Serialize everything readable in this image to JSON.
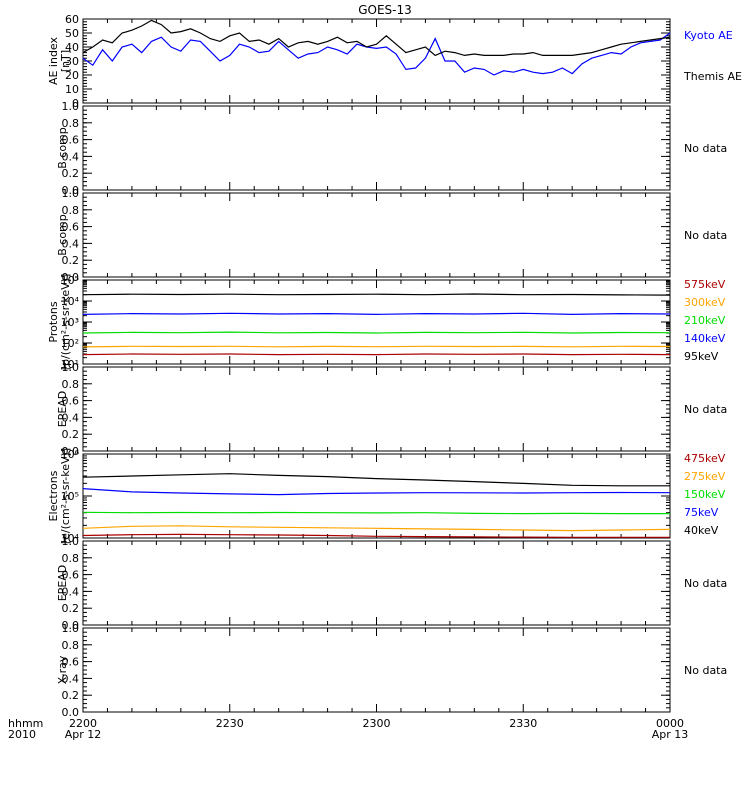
{
  "title": "GOES-13",
  "time_axis": {
    "corner_top": "hhmm",
    "corner_bottom": "2010",
    "ticks": [
      {
        "t": 0,
        "label": "2200",
        "sub": "Apr 12"
      },
      {
        "t": 30,
        "label": "2230",
        "sub": ""
      },
      {
        "t": 60,
        "label": "2300",
        "sub": ""
      },
      {
        "t": 90,
        "label": "2330",
        "sub": ""
      },
      {
        "t": 120,
        "label": "0000",
        "sub": "Apr 13"
      }
    ]
  },
  "chart_data": [
    {
      "type": "line",
      "ylabel": [
        "AE index",
        "[nT]"
      ],
      "ylim": [
        0,
        60
      ],
      "yticks": [
        "0",
        "10",
        "20",
        "30",
        "40",
        "50",
        "60"
      ],
      "yticks_values": [
        0,
        10,
        20,
        30,
        40,
        50,
        60
      ],
      "xlim": [
        0,
        120
      ],
      "series": [
        {
          "name": "Kyoto AE",
          "color": "#0000ff",
          "x": [
            0,
            2,
            4,
            6,
            8,
            10,
            12,
            14,
            16,
            18,
            20,
            22,
            24,
            26,
            28,
            30,
            32,
            34,
            36,
            38,
            40,
            42,
            44,
            46,
            48,
            50,
            52,
            54,
            56,
            58,
            60,
            62,
            64,
            66,
            68,
            70,
            72,
            74,
            76,
            78,
            80,
            82,
            84,
            86,
            88,
            90,
            92,
            94,
            96,
            98,
            100,
            102,
            104,
            106,
            108,
            110,
            112,
            114,
            116,
            118,
            120
          ],
          "y": [
            32,
            27,
            38,
            30,
            40,
            42,
            36,
            44,
            47,
            40,
            37,
            45,
            44,
            37,
            30,
            34,
            42,
            40,
            36,
            37,
            44,
            38,
            32,
            35,
            36,
            40,
            38,
            35,
            42,
            40,
            39,
            40,
            35,
            24,
            25,
            32,
            46,
            30,
            30,
            22,
            25,
            24,
            20,
            23,
            22,
            24,
            22,
            21,
            22,
            25,
            21,
            28,
            32,
            34,
            36,
            35,
            40,
            43,
            44,
            45,
            50
          ]
        },
        {
          "name": "Themis AE",
          "color": "#000000",
          "x": [
            0,
            2,
            4,
            6,
            8,
            10,
            12,
            14,
            16,
            18,
            20,
            22,
            24,
            26,
            28,
            30,
            32,
            34,
            36,
            38,
            40,
            42,
            44,
            46,
            48,
            50,
            52,
            54,
            56,
            58,
            60,
            62,
            64,
            66,
            68,
            70,
            72,
            74,
            76,
            78,
            80,
            82,
            84,
            86,
            88,
            90,
            92,
            94,
            96,
            98,
            100,
            102,
            104,
            106,
            108,
            110,
            112,
            114,
            116,
            118,
            120
          ],
          "y": [
            36,
            40,
            45,
            43,
            50,
            52,
            55,
            59,
            56,
            50,
            51,
            53,
            50,
            46,
            44,
            48,
            50,
            44,
            45,
            42,
            46,
            40,
            43,
            44,
            42,
            44,
            47,
            43,
            44,
            40,
            42,
            48,
            42,
            36,
            38,
            40,
            34,
            37,
            36,
            34,
            35,
            34,
            34,
            34,
            35,
            35,
            36,
            34,
            34,
            34,
            34,
            35,
            36,
            38,
            40,
            42,
            43,
            44,
            45,
            46,
            47
          ]
        }
      ],
      "legend": [
        {
          "text": "Kyoto AE",
          "color": "#0000ff"
        },
        {
          "text": "Themis AE",
          "color": "#000000"
        }
      ]
    },
    {
      "type": "line",
      "ylabel": [
        "B comp"
      ],
      "ylim": [
        0,
        1
      ],
      "yticks": [
        "0.0",
        "0.2",
        "0.4",
        "0.6",
        "0.8",
        "1.0"
      ],
      "yticks_values": [
        0,
        0.2,
        0.4,
        0.6,
        0.8,
        1.0
      ],
      "series": [],
      "note": "No data"
    },
    {
      "type": "line",
      "ylabel": [
        "B comp"
      ],
      "ylim": [
        0,
        1
      ],
      "yticks": [
        "0.0",
        "0.2",
        "0.4",
        "0.6",
        "0.8",
        "1.0"
      ],
      "yticks_values": [
        0,
        0.2,
        0.4,
        0.6,
        0.8,
        1.0
      ],
      "series": [],
      "note": "No data"
    },
    {
      "type": "line",
      "ylabel": [
        "Protons",
        "[p/(cm²-s-sr-keV)]"
      ],
      "yscale": "log",
      "ylim": [
        10,
        100000
      ],
      "yticks": [
        "10¹",
        "10²",
        "10³",
        "10⁴",
        "10⁵"
      ],
      "yticks_values": [
        10,
        100,
        1000,
        10000,
        100000
      ],
      "xlim": [
        0,
        120
      ],
      "series": [
        {
          "name": "95keV",
          "color": "#000000",
          "x": [
            0,
            10,
            20,
            30,
            40,
            50,
            60,
            70,
            80,
            90,
            100,
            110,
            120
          ],
          "y": [
            20000,
            21000,
            20500,
            21000,
            20000,
            20500,
            21000,
            20000,
            21500,
            20000,
            20500,
            19500,
            19000
          ]
        },
        {
          "name": "140keV",
          "color": "#0000ff",
          "x": [
            0,
            10,
            20,
            30,
            40,
            50,
            60,
            70,
            80,
            90,
            100,
            110,
            120
          ],
          "y": [
            2300,
            2500,
            2400,
            2600,
            2400,
            2500,
            2300,
            2500,
            2400,
            2600,
            2300,
            2500,
            2400
          ]
        },
        {
          "name": "210keV",
          "color": "#00dd00",
          "x": [
            0,
            10,
            20,
            30,
            40,
            50,
            60,
            70,
            80,
            90,
            100,
            110,
            120
          ],
          "y": [
            300,
            320,
            310,
            330,
            305,
            315,
            300,
            320,
            310,
            325,
            300,
            315,
            310
          ]
        },
        {
          "name": "300keV",
          "color": "#ffa500",
          "x": [
            0,
            10,
            20,
            30,
            40,
            50,
            60,
            70,
            80,
            90,
            100,
            110,
            120
          ],
          "y": [
            65,
            70,
            68,
            70,
            66,
            69,
            67,
            70,
            68,
            69,
            66,
            70,
            68
          ]
        },
        {
          "name": "575keV",
          "color": "#aa0000",
          "x": [
            0,
            10,
            20,
            30,
            40,
            50,
            60,
            70,
            80,
            90,
            100,
            110,
            120
          ],
          "y": [
            28,
            30,
            29,
            30,
            28,
            29,
            28,
            30,
            29,
            30,
            28,
            29,
            28
          ]
        }
      ],
      "legend": [
        {
          "text": "575keV",
          "color": "#aa0000"
        },
        {
          "text": "300keV",
          "color": "#ffa500"
        },
        {
          "text": "210keV",
          "color": "#00dd00"
        },
        {
          "text": "140keV",
          "color": "#0000ff"
        },
        {
          "text": "95keV",
          "color": "#000000"
        }
      ]
    },
    {
      "type": "line",
      "ylabel": [
        "EPEAD"
      ],
      "ylim": [
        0,
        1
      ],
      "yticks": [
        "0.0",
        "0.2",
        "0.4",
        "0.6",
        "0.8",
        "1.0"
      ],
      "yticks_values": [
        0,
        0.2,
        0.4,
        0.6,
        0.8,
        1.0
      ],
      "series": [],
      "note": "No data"
    },
    {
      "type": "line",
      "ylabel": [
        "Electrons",
        "[e/(cm²-s-sr-keV)]"
      ],
      "yscale": "log",
      "ylim": [
        10000,
        1000000
      ],
      "yticks": [
        "10⁴",
        "10⁵",
        "10⁶"
      ],
      "yticks_values": [
        10000,
        100000,
        1000000
      ],
      "xlim": [
        0,
        120
      ],
      "series": [
        {
          "name": "40keV",
          "color": "#000000",
          "x": [
            0,
            10,
            20,
            30,
            40,
            50,
            60,
            70,
            80,
            90,
            100,
            110,
            120
          ],
          "y": [
            280000,
            300000,
            320000,
            340000,
            310000,
            290000,
            260000,
            240000,
            220000,
            200000,
            180000,
            175000,
            175000
          ]
        },
        {
          "name": "75keV",
          "color": "#0000ff",
          "x": [
            0,
            10,
            20,
            30,
            40,
            50,
            60,
            70,
            80,
            90,
            100,
            110,
            120
          ],
          "y": [
            150000,
            125000,
            118000,
            112000,
            108000,
            115000,
            118000,
            120000,
            119000,
            118000,
            120000,
            121000,
            120000
          ]
        },
        {
          "name": "150keV",
          "color": "#00dd00",
          "x": [
            0,
            10,
            20,
            30,
            40,
            50,
            60,
            70,
            80,
            90,
            100,
            110,
            120
          ],
          "y": [
            41000,
            40000,
            40500,
            40000,
            40500,
            40000,
            39500,
            40000,
            38500,
            38000,
            38500,
            38000,
            38000
          ]
        },
        {
          "name": "275keV",
          "color": "#ffa500",
          "x": [
            0,
            10,
            20,
            30,
            40,
            50,
            60,
            70,
            80,
            90,
            100,
            110,
            120
          ],
          "y": [
            17000,
            19000,
            19500,
            18500,
            18000,
            17500,
            17000,
            16500,
            16000,
            15500,
            15000,
            15500,
            16000
          ]
        },
        {
          "name": "475keV",
          "color": "#aa0000",
          "x": [
            0,
            10,
            20,
            30,
            40,
            50,
            60,
            70,
            80,
            90,
            100,
            110,
            120
          ],
          "y": [
            11500,
            12000,
            12200,
            12000,
            11800,
            11500,
            11000,
            10800,
            10600,
            10500,
            10400,
            10400,
            10400
          ]
        }
      ],
      "legend": [
        {
          "text": "475keV",
          "color": "#aa0000"
        },
        {
          "text": "275keV",
          "color": "#ffa500"
        },
        {
          "text": "150keV",
          "color": "#00dd00"
        },
        {
          "text": "75keV",
          "color": "#0000ff"
        },
        {
          "text": "40keV",
          "color": "#000000"
        }
      ]
    },
    {
      "type": "line",
      "ylabel": [
        "EPEAD"
      ],
      "ylim": [
        0,
        1
      ],
      "yticks": [
        "0.0",
        "0.2",
        "0.4",
        "0.6",
        "0.8",
        "1.0"
      ],
      "yticks_values": [
        0,
        0.2,
        0.4,
        0.6,
        0.8,
        1.0
      ],
      "series": [],
      "note": "No data"
    },
    {
      "type": "line",
      "ylabel": [
        "X-ray"
      ],
      "ylim": [
        0,
        1
      ],
      "yticks": [
        "0.0",
        "0.2",
        "0.4",
        "0.6",
        "0.8",
        "1.0"
      ],
      "yticks_values": [
        0,
        0.2,
        0.4,
        0.6,
        0.8,
        1.0
      ],
      "series": [],
      "note": "No data"
    }
  ]
}
